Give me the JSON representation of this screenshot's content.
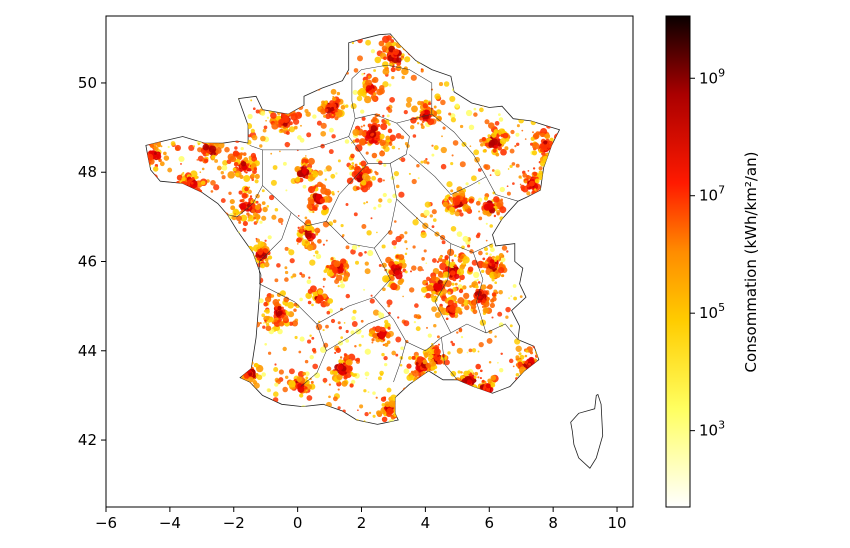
{
  "map": {
    "x_ticks": [
      "−6",
      "−4",
      "−2",
      "0",
      "2",
      "4",
      "6",
      "8",
      "10"
    ],
    "x_tick_values": [
      -6,
      -4,
      -2,
      0,
      2,
      4,
      6,
      8,
      10
    ],
    "y_ticks": [
      "42",
      "44",
      "46",
      "48",
      "50"
    ],
    "y_tick_values": [
      42,
      44,
      46,
      48,
      50
    ],
    "xlim": [
      -6,
      10.5
    ],
    "ylim": [
      40.5,
      51.5
    ]
  },
  "colorbar": {
    "label": "Consommation (kWh/km²/an)",
    "tick_exponents": [
      "3",
      "5",
      "7",
      "9"
    ],
    "tick_values": [
      3,
      5,
      7,
      9
    ],
    "scale": "log",
    "log_range": [
      1.7,
      10.06
    ],
    "colormap": "hot_r",
    "colors": [
      "#ffffff",
      "#ffff00",
      "#ffa500",
      "#ff0000",
      "#8b0000",
      "#0a0000"
    ]
  },
  "hotspots": [
    {
      "lon": 2.35,
      "lat": 48.85,
      "intensity": 1.0
    },
    {
      "lon": 4.85,
      "lat": 45.75,
      "intensity": 0.9
    },
    {
      "lon": -0.58,
      "lat": 44.84,
      "intensity": 0.9
    },
    {
      "lon": 5.38,
      "lat": 43.3,
      "intensity": 0.85
    },
    {
      "lon": 1.44,
      "lat": 43.6,
      "intensity": 0.8
    },
    {
      "lon": 3.06,
      "lat": 50.63,
      "intensity": 0.85
    },
    {
      "lon": 7.75,
      "lat": 48.58,
      "intensity": 0.75
    },
    {
      "lon": -1.55,
      "lat": 47.22,
      "intensity": 0.75
    },
    {
      "lon": -1.68,
      "lat": 48.11,
      "intensity": 0.7
    },
    {
      "lon": 7.26,
      "lat": 43.7,
      "intensity": 0.7
    },
    {
      "lon": 3.88,
      "lat": 43.61,
      "intensity": 0.7
    },
    {
      "lon": 5.72,
      "lat": 45.19,
      "intensity": 0.7
    },
    {
      "lon": 6.18,
      "lat": 48.69,
      "intensity": 0.65
    },
    {
      "lon": 1.1,
      "lat": 49.44,
      "intensity": 0.65
    },
    {
      "lon": 0.69,
      "lat": 47.39,
      "intensity": 0.55
    },
    {
      "lon": 5.04,
      "lat": 47.32,
      "intensity": 0.55
    },
    {
      "lon": 3.09,
      "lat": 45.78,
      "intensity": 0.6
    },
    {
      "lon": 4.03,
      "lat": 49.26,
      "intensity": 0.55
    },
    {
      "lon": 1.26,
      "lat": 45.83,
      "intensity": 0.5
    },
    {
      "lon": 0.34,
      "lat": 46.58,
      "intensity": 0.5
    },
    {
      "lon": -0.36,
      "lat": 49.18,
      "intensity": 0.55
    },
    {
      "lon": -4.49,
      "lat": 48.39,
      "intensity": 0.5
    },
    {
      "lon": -3.36,
      "lat": 47.75,
      "intensity": 0.5
    },
    {
      "lon": -2.76,
      "lat": 48.51,
      "intensity": 0.45
    },
    {
      "lon": 2.3,
      "lat": 49.89,
      "intensity": 0.45
    },
    {
      "lon": 6.02,
      "lat": 47.24,
      "intensity": 0.5
    },
    {
      "lon": 7.34,
      "lat": 47.75,
      "intensity": 0.6
    },
    {
      "lon": 4.39,
      "lat": 45.44,
      "intensity": 0.55
    },
    {
      "lon": 0.2,
      "lat": 48.0,
      "intensity": 0.45
    },
    {
      "lon": 1.9,
      "lat": 47.9,
      "intensity": 0.5
    },
    {
      "lon": -1.15,
      "lat": 46.16,
      "intensity": 0.45
    },
    {
      "lon": 0.1,
      "lat": 43.23,
      "intensity": 0.4
    },
    {
      "lon": -1.48,
      "lat": 43.48,
      "intensity": 0.5
    },
    {
      "lon": 2.89,
      "lat": 42.69,
      "intensity": 0.45
    },
    {
      "lon": 4.36,
      "lat": 43.84,
      "intensity": 0.45
    },
    {
      "lon": 5.93,
      "lat": 43.12,
      "intensity": 0.55
    },
    {
      "lon": 6.13,
      "lat": 45.9,
      "intensity": 0.5
    },
    {
      "lon": 0.71,
      "lat": 45.18,
      "intensity": 0.4
    },
    {
      "lon": 2.63,
      "lat": 44.35,
      "intensity": 0.35
    },
    {
      "lon": 4.83,
      "lat": 44.93,
      "intensity": 0.45
    }
  ]
}
